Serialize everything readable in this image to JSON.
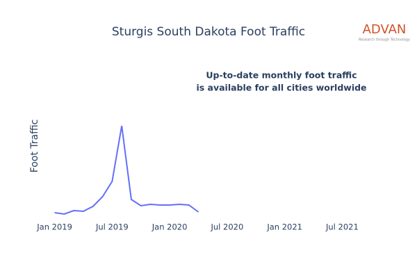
{
  "chart_data": {
    "type": "line",
    "title": "Sturgis South Dakota Foot Traffic",
    "y_label": "Foot Traffic",
    "annotation": [
      "Up-to-date monthly foot traffic",
      "is available for all cities worldwide"
    ],
    "logo": {
      "name": "ADVAN",
      "tagline": "Research through Technology"
    },
    "x": [
      "2019-01",
      "2019-02",
      "2019-03",
      "2019-04",
      "2019-05",
      "2019-06",
      "2019-07",
      "2019-08",
      "2019-09",
      "2019-10",
      "2019-11",
      "2019-12",
      "2020-01",
      "2020-02",
      "2020-03",
      "2020-04"
    ],
    "series": [
      {
        "name": "Foot Traffic",
        "color": "#636efa",
        "values": [
          9,
          7,
          12,
          11,
          18,
          32,
          54,
          134,
          28,
          19,
          21,
          20,
          20,
          21,
          20,
          10
        ]
      }
    ],
    "xlim": [
      "2018-11",
      "2021-09"
    ],
    "xticks": [
      {
        "value": "2019-01",
        "label": "Jan 2019"
      },
      {
        "value": "2019-07",
        "label": "Jul 2019"
      },
      {
        "value": "2020-01",
        "label": "Jan 2020"
      },
      {
        "value": "2020-07",
        "label": "Jul 2020"
      },
      {
        "value": "2021-01",
        "label": "Jan 2021"
      },
      {
        "value": "2021-07",
        "label": "Jul 2021"
      }
    ],
    "ylim": [
      0,
      145
    ]
  }
}
